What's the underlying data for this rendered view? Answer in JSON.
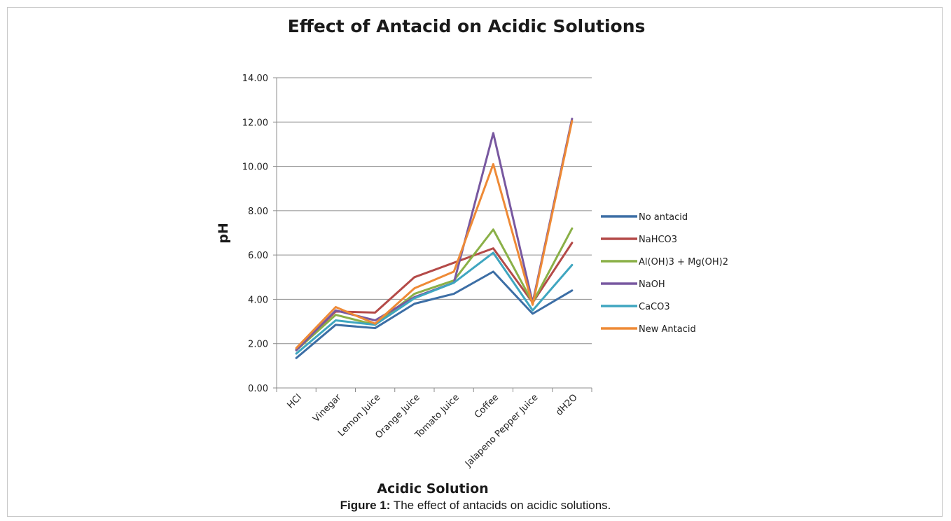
{
  "caption": {
    "label": "Figure 1:",
    "text": " The effect of antacids on acidic solutions."
  },
  "chart_data": {
    "type": "line",
    "title": "Effect of Antacid on Acidic Solutions",
    "xlabel": "Acidic Solution",
    "ylabel": "pH",
    "ylim": [
      0,
      14
    ],
    "yticks": [
      "0.00",
      "2.00",
      "4.00",
      "6.00",
      "8.00",
      "10.00",
      "12.00",
      "14.00"
    ],
    "grid": "horizontal",
    "legend_position": "right",
    "categories": [
      "HCl",
      "Vinegar",
      "Lemon Juice",
      "Orange Juice",
      "Tomato Juice",
      "Coffee",
      "Jalapeno Pepper Juice",
      "dH2O"
    ],
    "series": [
      {
        "name": "No antacid",
        "color": "#3c6ea5",
        "values": [
          1.35,
          2.85,
          2.7,
          3.8,
          4.25,
          5.25,
          3.35,
          4.4
        ]
      },
      {
        "name": "NaHCO3",
        "color": "#b44a48",
        "values": [
          1.75,
          3.45,
          3.4,
          5.0,
          5.65,
          6.3,
          3.85,
          6.55
        ]
      },
      {
        "name": "Al(OH)3 + Mg(OH)2",
        "color": "#8ab047",
        "values": [
          1.7,
          3.3,
          2.85,
          4.25,
          4.85,
          7.15,
          3.85,
          7.2
        ]
      },
      {
        "name": "NaOH",
        "color": "#7858a0",
        "values": [
          1.7,
          3.5,
          3.05,
          4.1,
          4.75,
          11.5,
          3.85,
          12.15
        ]
      },
      {
        "name": "CaCO3",
        "color": "#3fa6c0",
        "values": [
          1.55,
          3.05,
          2.85,
          4.05,
          4.75,
          6.1,
          3.5,
          5.55
        ]
      },
      {
        "name": "New Antacid",
        "color": "#ee8a36",
        "values": [
          1.8,
          3.65,
          2.9,
          4.5,
          5.25,
          10.1,
          3.75,
          12.05
        ]
      }
    ]
  }
}
